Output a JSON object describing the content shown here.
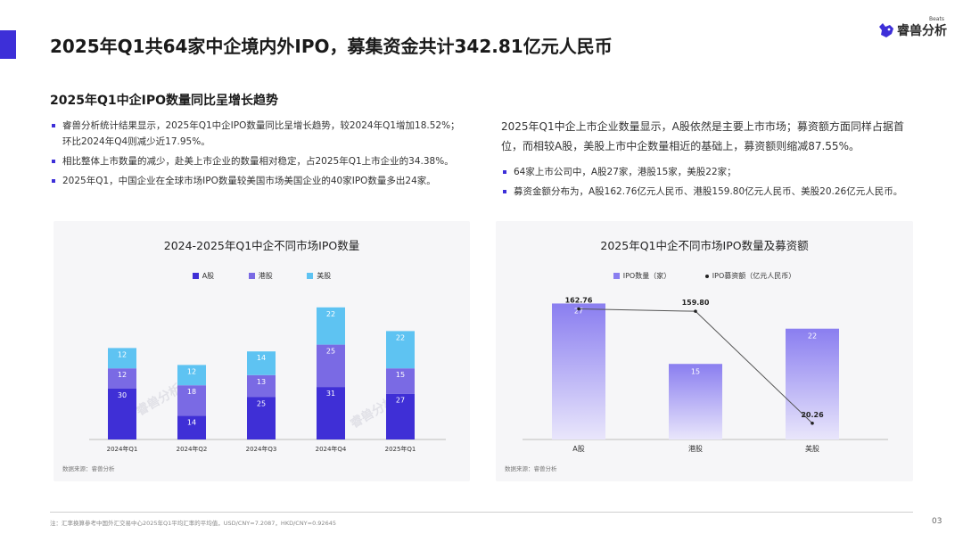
{
  "page": {
    "title": "2025年Q1共64家中企境内外IPO，募集资金共计342.81亿元人民币",
    "logo_text": "睿兽分析",
    "logo_sub": "Beats",
    "section_title": "2025年Q1中企IPO数量同比呈增长趋势",
    "left_bullets": [
      "睿兽分析统计结果显示，2025年Q1中企IPO数量同比呈增长趋势，较2024年Q1增加18.52%；环比2024年Q4则减少近17.95%。",
      "相比整体上市数量的减少，赴美上市企业的数量相对稳定，占2025年Q1上市企业的34.38%。",
      "2025年Q1，中国企业在全球市场IPO数量较美国市场美国企业的40家IPO数量多出24家。"
    ],
    "right_paragraph": "2025年Q1中企上市企业数量显示，A股依然是主要上市市场；募资额方面同样占据首位，而相较A股，美股上市中企数量相近的基础上，募资额则缩减87.55%。",
    "right_bullets": [
      "64家上市公司中，A股27家，港股15家，美股22家；",
      "募资金额分布为，A股162.76亿元人民币、港股159.80亿元人民币、美股20.26亿元人民币。"
    ],
    "footnote": "注：汇率换算参考中国外汇交易中心2025年Q1平均汇率的平均值，USD/CNY=7.2087，HKD/CNY=0.92645",
    "page_number": "03",
    "watermark": "睿兽分析"
  },
  "colors": {
    "accent": "#3d2fd8",
    "a_share": "#3f2fd6",
    "hk_share": "#7a6ae4",
    "us_share": "#5ec3f2",
    "ipo_bar_top": "#8a7ef0",
    "ipo_bar_bottom": "#e9e6fb",
    "line": "#555555"
  },
  "chart_data": [
    {
      "type": "bar",
      "stacked": true,
      "title": "2024-2025年Q1中企不同市场IPO数量",
      "categories": [
        "2024年Q1",
        "2024年Q2",
        "2024年Q3",
        "2024年Q4",
        "2025年Q1"
      ],
      "series": [
        {
          "name": "A股",
          "values": [
            30,
            14,
            25,
            31,
            27
          ]
        },
        {
          "name": "港股",
          "values": [
            12,
            18,
            13,
            25,
            15
          ]
        },
        {
          "name": "美股",
          "values": [
            12,
            12,
            14,
            22,
            22
          ]
        }
      ],
      "legend": "top",
      "grid": false,
      "source": "数据来源：睿兽分析"
    },
    {
      "type": "bar",
      "title": "2025年Q1中企不同市场IPO数量及募资额",
      "categories": [
        "A股",
        "港股",
        "美股"
      ],
      "series": [
        {
          "name": "IPO数量（家）",
          "type": "bar",
          "values": [
            27,
            15,
            22
          ]
        },
        {
          "name": "IPO募资额（亿元人民币）",
          "type": "line",
          "values": [
            162.76,
            159.8,
            20.26
          ]
        }
      ],
      "legend": "top",
      "grid": false,
      "source": "数据来源：睿兽分析"
    }
  ]
}
